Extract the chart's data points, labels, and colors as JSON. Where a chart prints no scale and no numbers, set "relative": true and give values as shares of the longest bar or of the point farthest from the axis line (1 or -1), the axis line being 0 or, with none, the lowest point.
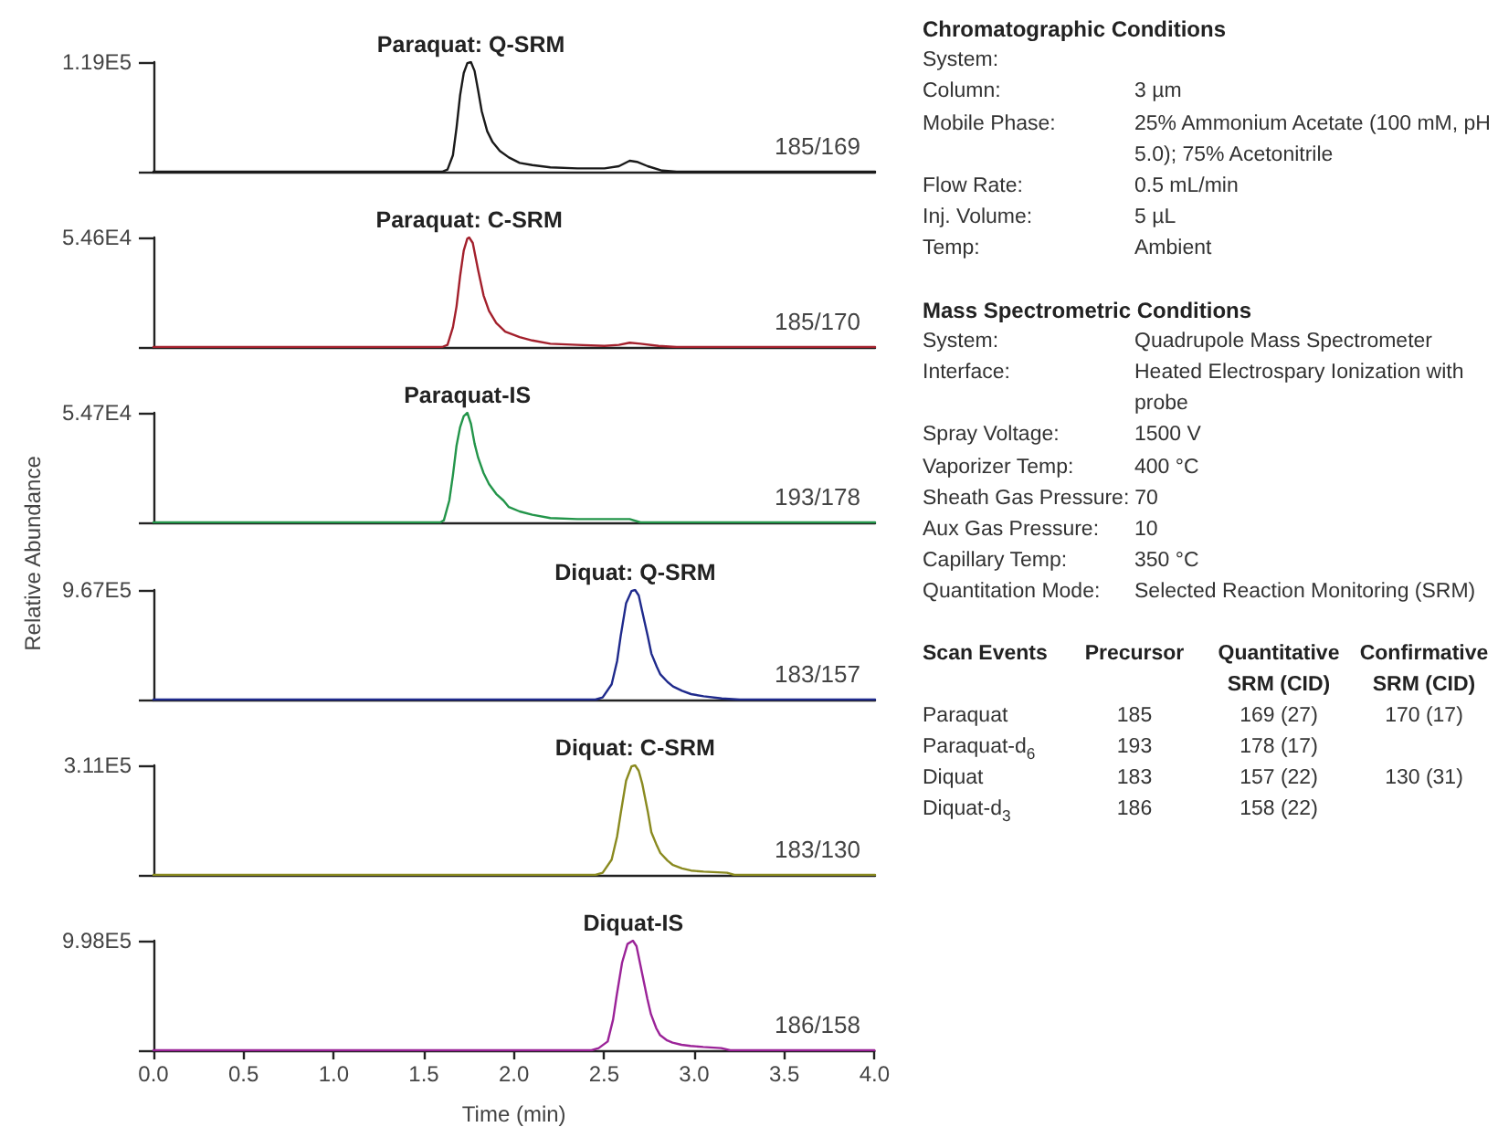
{
  "chart_data": [
    {
      "type": "line",
      "title": "Paraquat: Q-SRM",
      "relative": true,
      "color": "#1a1a1a",
      "xlim": [
        0,
        4
      ],
      "tick_labels": false,
      "x": [
        0,
        1.6,
        1.63,
        1.66,
        1.68,
        1.7,
        1.72,
        1.74,
        1.76,
        1.78,
        1.8,
        1.82,
        1.85,
        1.88,
        1.92,
        1.97,
        2.03,
        2.1,
        2.2,
        2.35,
        2.5,
        2.58,
        2.64,
        2.68,
        2.74,
        2.82,
        2.9,
        4
      ],
      "values": [
        0,
        0,
        0.02,
        0.15,
        0.4,
        0.7,
        0.9,
        0.99,
        1,
        0.92,
        0.74,
        0.55,
        0.37,
        0.27,
        0.19,
        0.13,
        0.08,
        0.06,
        0.04,
        0.03,
        0.03,
        0.05,
        0.1,
        0.09,
        0.05,
        0.01,
        0,
        0
      ],
      "annotations": [
        "1.19E5",
        "185/169"
      ]
    },
    {
      "type": "line",
      "title": "Paraquat: C-SRM",
      "relative": true,
      "color": "#a3202c",
      "xlim": [
        0,
        4
      ],
      "tick_labels": false,
      "x": [
        0,
        1.6,
        1.63,
        1.66,
        1.68,
        1.7,
        1.72,
        1.74,
        1.75,
        1.77,
        1.8,
        1.83,
        1.86,
        1.9,
        1.95,
        2.03,
        2.1,
        2.2,
        2.35,
        2.5,
        2.58,
        2.64,
        2.7,
        2.8,
        2.9,
        4
      ],
      "values": [
        0,
        0,
        0.02,
        0.18,
        0.37,
        0.65,
        0.88,
        0.99,
        1,
        0.95,
        0.7,
        0.47,
        0.33,
        0.22,
        0.14,
        0.09,
        0.06,
        0.03,
        0.02,
        0.01,
        0.02,
        0.04,
        0.03,
        0.01,
        0,
        0
      ],
      "annotations": [
        "5.46E4",
        "185/170"
      ]
    },
    {
      "type": "line",
      "title": "Paraquat-IS",
      "relative": true,
      "color": "#23954a",
      "xlim": [
        0,
        4
      ],
      "tick_labels": false,
      "x": [
        0,
        1.59,
        1.61,
        1.64,
        1.66,
        1.68,
        1.7,
        1.72,
        1.74,
        1.76,
        1.78,
        1.8,
        1.83,
        1.86,
        1.9,
        1.94,
        1.97,
        2.03,
        2.1,
        2.2,
        2.35,
        2.5,
        2.64,
        2.7,
        4
      ],
      "values": [
        0,
        0,
        0.02,
        0.2,
        0.43,
        0.7,
        0.87,
        0.97,
        1,
        0.9,
        0.72,
        0.59,
        0.45,
        0.35,
        0.26,
        0.2,
        0.14,
        0.1,
        0.07,
        0.04,
        0.03,
        0.03,
        0.03,
        0,
        0
      ],
      "annotations": [
        "5.47E4",
        "193/178"
      ]
    },
    {
      "type": "line",
      "title": "Diquat: Q-SRM",
      "relative": true,
      "color": "#1f2a8c",
      "xlim": [
        0,
        4
      ],
      "tick_labels": false,
      "ylabel": "Relative Abundance",
      "x": [
        0,
        2.45,
        2.49,
        2.54,
        2.57,
        2.59,
        2.62,
        2.65,
        2.67,
        2.69,
        2.71,
        2.74,
        2.76,
        2.79,
        2.81,
        2.85,
        2.88,
        2.93,
        2.98,
        3.05,
        3.15,
        3.25,
        4
      ],
      "values": [
        0,
        0,
        0.02,
        0.14,
        0.35,
        0.58,
        0.88,
        0.99,
        1,
        0.95,
        0.8,
        0.58,
        0.42,
        0.3,
        0.23,
        0.16,
        0.12,
        0.08,
        0.05,
        0.03,
        0.01,
        0,
        0
      ],
      "annotations": [
        "9.67E5",
        "183/157"
      ]
    },
    {
      "type": "line",
      "title": "Diquat: C-SRM",
      "relative": true,
      "color": "#8a8a20",
      "xlim": [
        0,
        4
      ],
      "tick_labels": false,
      "x": [
        0,
        2.45,
        2.49,
        2.54,
        2.57,
        2.59,
        2.62,
        2.65,
        2.67,
        2.69,
        2.71,
        2.74,
        2.76,
        2.79,
        2.81,
        2.85,
        2.88,
        2.93,
        2.98,
        3.05,
        3.18,
        3.22,
        4
      ],
      "values": [
        0,
        0,
        0.02,
        0.14,
        0.35,
        0.56,
        0.86,
        0.99,
        1,
        0.95,
        0.83,
        0.58,
        0.39,
        0.27,
        0.2,
        0.13,
        0.09,
        0.06,
        0.04,
        0.03,
        0.02,
        0,
        0
      ],
      "annotations": [
        "3.11E5",
        "183/130"
      ]
    },
    {
      "type": "line",
      "title": "Diquat-IS",
      "relative": true,
      "color": "#9b2398",
      "xlim": [
        0,
        4
      ],
      "tick_labels": "x",
      "xlabel": "Time (min)",
      "xticks": [
        {
          "value": 0,
          "label": "0.0"
        },
        0.5,
        {
          "value": 1,
          "label": "1.0"
        },
        1.5,
        {
          "value": 2,
          "label": "2.0"
        },
        2.5,
        {
          "value": 3,
          "label": "3.0"
        },
        3.5,
        {
          "value": 4,
          "label": "4.0"
        }
      ],
      "x": [
        0,
        2.43,
        2.47,
        2.52,
        2.55,
        2.57,
        2.6,
        2.63,
        2.66,
        2.68,
        2.71,
        2.74,
        2.76,
        2.79,
        2.81,
        2.85,
        2.88,
        2.93,
        2.98,
        3.05,
        3.15,
        3.2,
        4
      ],
      "values": [
        0,
        0,
        0.02,
        0.08,
        0.28,
        0.5,
        0.8,
        0.97,
        1,
        0.95,
        0.71,
        0.47,
        0.33,
        0.2,
        0.14,
        0.09,
        0.07,
        0.05,
        0.04,
        0.03,
        0.02,
        0,
        0
      ],
      "annotations": [
        "9.98E5",
        "186/158"
      ]
    },
    {
      "type": "other",
      "title": "Chromatographic Conditions",
      "y_categories": [
        "System:",
        "Column:",
        "Mobile Phase:",
        "Flow Rate:",
        "Inj. Volume:",
        "Temp:"
      ],
      "cell_labels": [
        [
          null
        ],
        [
          "3 µm"
        ],
        [
          "25% Ammonium Acetate (100 mM, pH 5.0); 75% Acetonitrile"
        ],
        [
          "0.5 mL/min"
        ],
        [
          "5 µL"
        ],
        [
          "Ambient"
        ]
      ]
    },
    {
      "type": "other",
      "title": "Mass Spectrometric Conditions",
      "y_categories": [
        "System:",
        "Interface:",
        "Spray Voltage:",
        "Vaporizer Temp:",
        "Sheath Gas Pressure:",
        "Aux Gas Pressure:",
        "Capillary Temp:",
        "Quantitation Mode:"
      ],
      "cell_labels": [
        [
          "Quadrupole Mass Spectrometer"
        ],
        [
          "Heated Electrospary Ionization with probe"
        ],
        [
          "1500 V"
        ],
        [
          "400 °C"
        ],
        [
          "70"
        ],
        [
          "10"
        ],
        [
          "350 °C"
        ],
        [
          "Selected Reaction Monitoring (SRM)"
        ]
      ]
    },
    {
      "type": "other",
      "ylabel": "Scan Events",
      "categories": [
        "Precursor",
        "Quantitative SRM (CID)",
        "Confirmative SRM (CID)"
      ],
      "y_categories": [
        "Paraquat",
        "Paraquat-d$_{6}$",
        "Diquat",
        "Diquat-d$_{3}$"
      ],
      "cell_labels": [
        [
          "185",
          "169 (27)",
          "170 (17)"
        ],
        [
          "193",
          "178 (17)",
          null
        ],
        [
          "183",
          "157 (22)",
          "130 (31)"
        ],
        [
          "186",
          "158 (22)",
          null
        ]
      ]
    }
  ]
}
